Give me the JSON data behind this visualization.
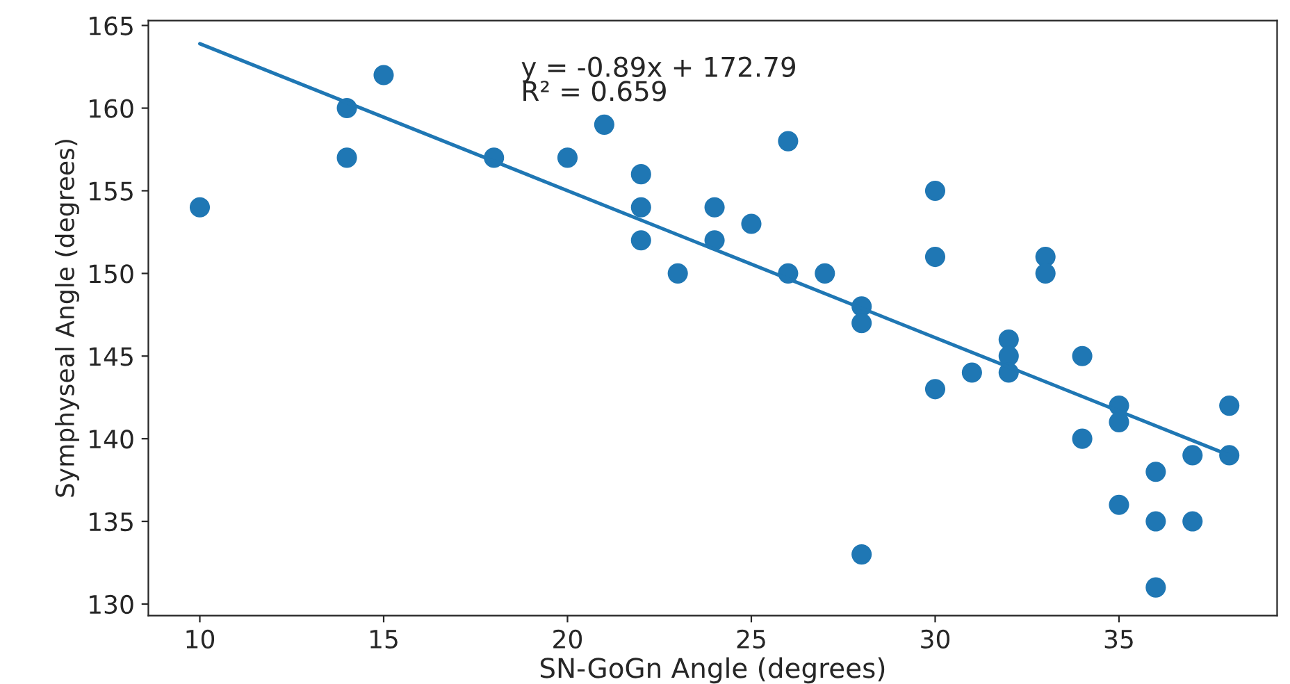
{
  "chart_data": {
    "type": "scatter",
    "xlabel": "SN-GoGn Angle (degrees)",
    "ylabel": "Symphyseal Angle (degrees)",
    "series": [
      {
        "color": "#1f77b4",
        "marker": "circle",
        "x": [
          10,
          14,
          14,
          15,
          18,
          20,
          21,
          22,
          22,
          22,
          23,
          24,
          24,
          25,
          26,
          26,
          27,
          28,
          28,
          28,
          30,
          30,
          30,
          31,
          32,
          32,
          32,
          33,
          33,
          34,
          34,
          35,
          35,
          35,
          36,
          36,
          36,
          37,
          37,
          38,
          38
        ],
        "values": [
          154,
          160,
          157,
          162,
          157,
          157,
          159,
          156,
          154,
          152,
          150,
          154,
          152,
          153,
          158,
          150,
          150,
          148,
          147,
          133,
          155,
          151,
          143,
          144,
          146,
          145,
          144,
          151,
          150,
          145,
          140,
          142,
          141,
          136,
          138,
          135,
          131,
          139,
          135,
          142,
          139
        ]
      },
      {
        "type": "line",
        "color": "#1f77b4",
        "x": [
          10,
          38
        ],
        "values": [
          163.9,
          139
        ]
      }
    ],
    "annotations": [
      "y = -0.89x + 172.79\nR² = 0.659"
    ],
    "xlim": [
      8.6,
      39.3
    ],
    "ylim": [
      129.3,
      165.3
    ],
    "xticks": [
      10,
      15,
      20,
      25,
      30,
      35
    ],
    "yticks": [
      130,
      135,
      140,
      145,
      150,
      155,
      160,
      165
    ],
    "grid": false
  }
}
